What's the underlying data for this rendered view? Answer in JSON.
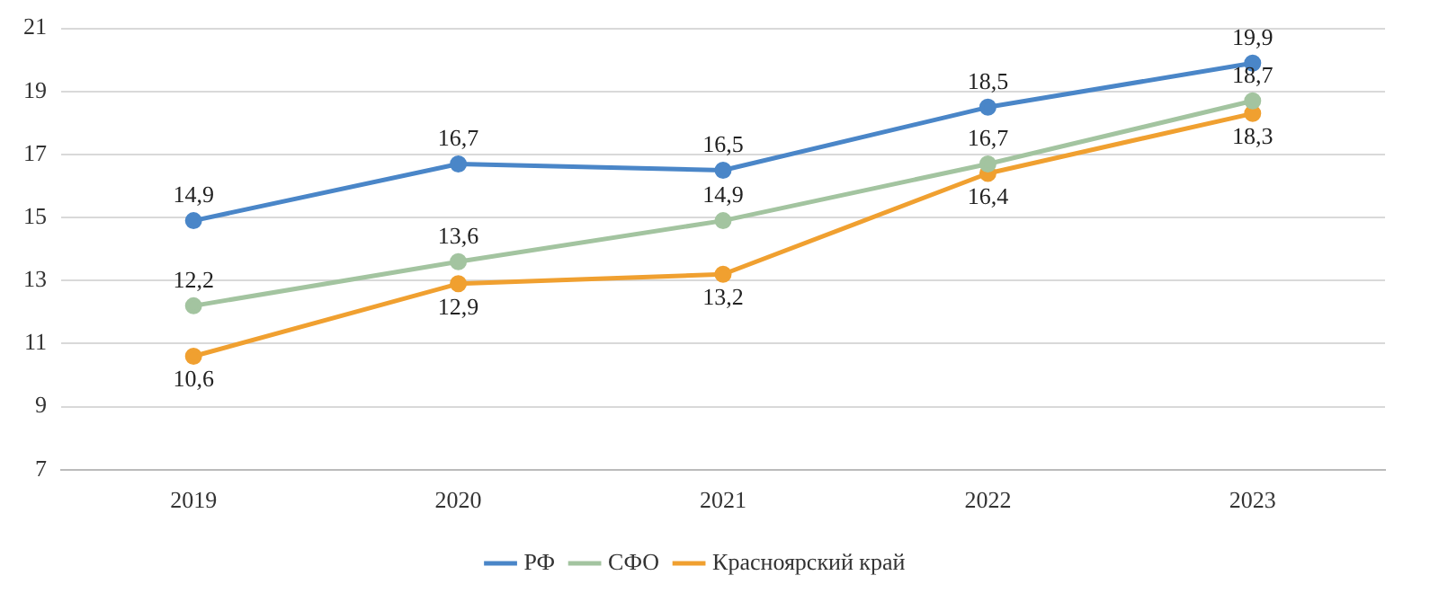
{
  "chart_data": {
    "type": "line",
    "categories": [
      "2019",
      "2020",
      "2021",
      "2022",
      "2023"
    ],
    "series": [
      {
        "name": "РФ",
        "color": "#4a86c8",
        "values": [
          14.9,
          16.7,
          16.5,
          18.5,
          19.9
        ],
        "value_labels": [
          "14,9",
          "16,7",
          "16,5",
          "18,5",
          "19,9"
        ]
      },
      {
        "name": "СФО",
        "color": "#a3c4a0",
        "values": [
          12.2,
          13.6,
          14.9,
          16.7,
          18.7
        ],
        "value_labels": [
          "12,2",
          "13,6",
          "14,9",
          "16,7",
          "18,7"
        ]
      },
      {
        "name": "Красноярский край",
        "color": "#f0a030",
        "values": [
          10.6,
          12.9,
          13.2,
          16.4,
          18.3
        ],
        "value_labels": [
          "10,6",
          "12,9",
          "13,2",
          "16,4",
          "18,3"
        ]
      }
    ],
    "ylim": [
      7,
      21
    ],
    "yticks": [
      7,
      9,
      11,
      13,
      15,
      17,
      19,
      21
    ],
    "grid": "y",
    "legend": "bottom",
    "marker": "circle",
    "line_style": "solid"
  }
}
